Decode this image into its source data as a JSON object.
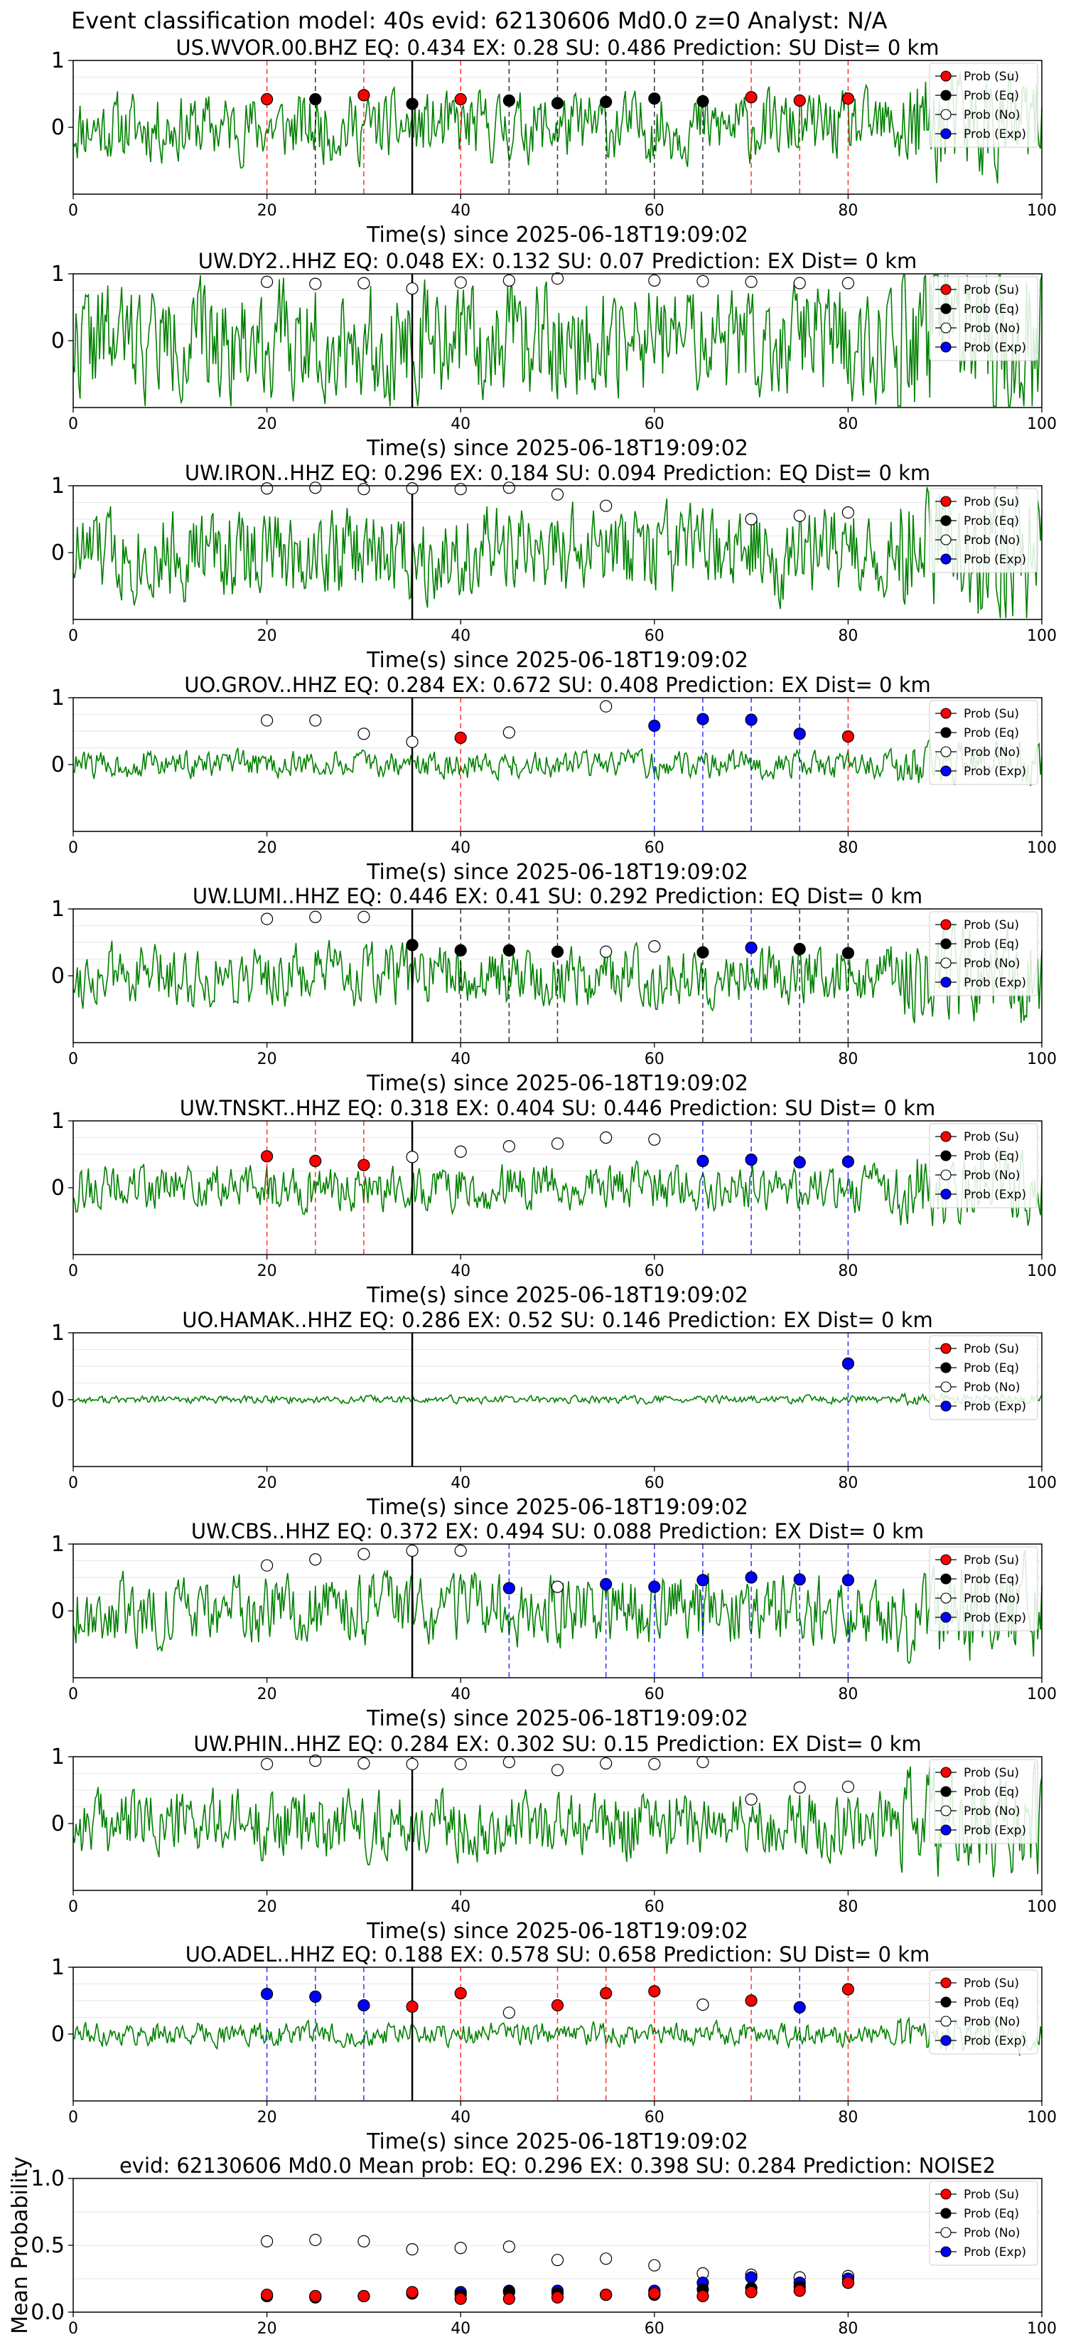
{
  "suptitle": "Event classification model: 40s evid: 62130606 Md0.0 z=0 Analyst: N/A",
  "legend_labels": [
    "Prob (Su)",
    "Prob (Eq)",
    "Prob (No)",
    "Prob (Exp)"
  ],
  "colors": {
    "trace": "#008000",
    "su": "#ff0000",
    "eq": "#000000",
    "no": "#ffffff",
    "exp": "#0000ff",
    "start_line": "#000000"
  },
  "chart_data": [
    {
      "type": "scatter",
      "title": "US.WVOR.00.BHZ   EQ: 0.434   EX: 0.28   SU: 0.486   Prediction: SU    Dist= 0 km",
      "xlabel": "Time(s) since 2025-06-18T19:09:02",
      "xlim": [
        0,
        100
      ],
      "ylim": [
        -1,
        1
      ],
      "xticks": [
        0,
        20,
        40,
        60,
        80,
        100
      ],
      "yticks": [
        1,
        0
      ],
      "start_line": 35,
      "noise_amp": 0.45,
      "seed": 11,
      "points": [
        {
          "x": 20,
          "y": 0.42,
          "cls": "su"
        },
        {
          "x": 25,
          "y": 0.42,
          "cls": "eq"
        },
        {
          "x": 30,
          "y": 0.48,
          "cls": "su"
        },
        {
          "x": 35,
          "y": 0.35,
          "cls": "eq"
        },
        {
          "x": 40,
          "y": 0.42,
          "cls": "su"
        },
        {
          "x": 45,
          "y": 0.4,
          "cls": "eq"
        },
        {
          "x": 50,
          "y": 0.36,
          "cls": "eq"
        },
        {
          "x": 55,
          "y": 0.38,
          "cls": "eq"
        },
        {
          "x": 60,
          "y": 0.43,
          "cls": "eq"
        },
        {
          "x": 65,
          "y": 0.39,
          "cls": "eq"
        },
        {
          "x": 70,
          "y": 0.45,
          "cls": "su"
        },
        {
          "x": 75,
          "y": 0.4,
          "cls": "su"
        },
        {
          "x": 80,
          "y": 0.43,
          "cls": "su"
        }
      ]
    },
    {
      "type": "scatter",
      "title": "UW.DY2..HHZ   EQ: 0.048   EX: 0.132   SU: 0.07   Prediction: EX    Dist= 0 km",
      "xlabel": "Time(s) since 2025-06-18T19:09:02",
      "xlim": [
        0,
        100
      ],
      "ylim": [
        -1,
        1
      ],
      "xticks": [
        0,
        20,
        40,
        60,
        80,
        100
      ],
      "yticks": [
        1,
        0
      ],
      "start_line": 35,
      "noise_amp": 0.75,
      "seed": 22,
      "points": [
        {
          "x": 20,
          "y": 0.88,
          "cls": "no"
        },
        {
          "x": 25,
          "y": 0.85,
          "cls": "no"
        },
        {
          "x": 30,
          "y": 0.86,
          "cls": "no"
        },
        {
          "x": 35,
          "y": 0.78,
          "cls": "no"
        },
        {
          "x": 40,
          "y": 0.87,
          "cls": "no"
        },
        {
          "x": 45,
          "y": 0.9,
          "cls": "no"
        },
        {
          "x": 50,
          "y": 0.93,
          "cls": "no"
        },
        {
          "x": 60,
          "y": 0.9,
          "cls": "no"
        },
        {
          "x": 65,
          "y": 0.89,
          "cls": "no"
        },
        {
          "x": 70,
          "y": 0.88,
          "cls": "no"
        },
        {
          "x": 75,
          "y": 0.86,
          "cls": "no"
        },
        {
          "x": 80,
          "y": 0.86,
          "cls": "no"
        }
      ]
    },
    {
      "type": "scatter",
      "title": "UW.IRON..HHZ   EQ: 0.296   EX: 0.184   SU: 0.094   Prediction: EQ    Dist= 0 km",
      "xlabel": "Time(s) since 2025-06-18T19:09:02",
      "xlim": [
        0,
        100
      ],
      "ylim": [
        -1,
        1
      ],
      "xticks": [
        0,
        20,
        40,
        60,
        80,
        100
      ],
      "yticks": [
        1,
        0
      ],
      "start_line": 35,
      "noise_amp": 0.6,
      "seed": 33,
      "points": [
        {
          "x": 20,
          "y": 0.96,
          "cls": "no"
        },
        {
          "x": 25,
          "y": 0.97,
          "cls": "no"
        },
        {
          "x": 30,
          "y": 0.95,
          "cls": "no"
        },
        {
          "x": 35,
          "y": 0.96,
          "cls": "no"
        },
        {
          "x": 40,
          "y": 0.95,
          "cls": "no"
        },
        {
          "x": 45,
          "y": 0.97,
          "cls": "no"
        },
        {
          "x": 50,
          "y": 0.87,
          "cls": "no"
        },
        {
          "x": 55,
          "y": 0.7,
          "cls": "no"
        },
        {
          "x": 70,
          "y": 0.5,
          "cls": "no"
        },
        {
          "x": 75,
          "y": 0.55,
          "cls": "no"
        },
        {
          "x": 80,
          "y": 0.6,
          "cls": "no"
        }
      ]
    },
    {
      "type": "scatter",
      "title": "UO.GROV..HHZ   EQ: 0.284   EX: 0.672   SU: 0.408   Prediction: EX    Dist= 0 km",
      "xlabel": "Time(s) since 2025-06-18T19:09:02",
      "xlim": [
        0,
        100
      ],
      "ylim": [
        -1,
        1
      ],
      "xticks": [
        0,
        20,
        40,
        60,
        80,
        100
      ],
      "yticks": [
        1,
        0
      ],
      "start_line": 35,
      "noise_amp": 0.18,
      "seed": 44,
      "points": [
        {
          "x": 20,
          "y": 0.66,
          "cls": "no"
        },
        {
          "x": 25,
          "y": 0.66,
          "cls": "no"
        },
        {
          "x": 30,
          "y": 0.46,
          "cls": "no"
        },
        {
          "x": 35,
          "y": 0.34,
          "cls": "no"
        },
        {
          "x": 40,
          "y": 0.4,
          "cls": "su"
        },
        {
          "x": 45,
          "y": 0.48,
          "cls": "no"
        },
        {
          "x": 55,
          "y": 0.87,
          "cls": "no"
        },
        {
          "x": 60,
          "y": 0.58,
          "cls": "exp"
        },
        {
          "x": 65,
          "y": 0.68,
          "cls": "exp"
        },
        {
          "x": 70,
          "y": 0.67,
          "cls": "exp"
        },
        {
          "x": 75,
          "y": 0.46,
          "cls": "exp"
        },
        {
          "x": 80,
          "y": 0.42,
          "cls": "su"
        }
      ]
    },
    {
      "type": "scatter",
      "title": "UW.LUMI..HHZ   EQ: 0.446   EX: 0.41   SU: 0.292   Prediction: EQ    Dist= 0 km",
      "xlabel": "Time(s) since 2025-06-18T19:09:02",
      "xlim": [
        0,
        100
      ],
      "ylim": [
        -1,
        1
      ],
      "xticks": [
        0,
        20,
        40,
        60,
        80,
        100
      ],
      "yticks": [
        1,
        0
      ],
      "start_line": 35,
      "noise_amp": 0.4,
      "seed": 55,
      "points": [
        {
          "x": 20,
          "y": 0.85,
          "cls": "no"
        },
        {
          "x": 25,
          "y": 0.88,
          "cls": "no"
        },
        {
          "x": 30,
          "y": 0.88,
          "cls": "no"
        },
        {
          "x": 35,
          "y": 0.46,
          "cls": "eq"
        },
        {
          "x": 40,
          "y": 0.38,
          "cls": "eq"
        },
        {
          "x": 45,
          "y": 0.38,
          "cls": "eq"
        },
        {
          "x": 50,
          "y": 0.36,
          "cls": "eq"
        },
        {
          "x": 55,
          "y": 0.36,
          "cls": "no"
        },
        {
          "x": 60,
          "y": 0.44,
          "cls": "no"
        },
        {
          "x": 65,
          "y": 0.35,
          "cls": "eq"
        },
        {
          "x": 70,
          "y": 0.42,
          "cls": "exp"
        },
        {
          "x": 75,
          "y": 0.4,
          "cls": "eq"
        },
        {
          "x": 80,
          "y": 0.34,
          "cls": "eq"
        }
      ]
    },
    {
      "type": "scatter",
      "title": "UW.TNSKT..HHZ   EQ: 0.318   EX: 0.404   SU: 0.446   Prediction: SU    Dist= 0 km",
      "xlabel": "Time(s) since 2025-06-18T19:09:02",
      "xlim": [
        0,
        100
      ],
      "ylim": [
        -1,
        1
      ],
      "xticks": [
        0,
        20,
        40,
        60,
        80,
        100
      ],
      "yticks": [
        1,
        0
      ],
      "start_line": 35,
      "noise_amp": 0.3,
      "seed": 66,
      "points": [
        {
          "x": 20,
          "y": 0.47,
          "cls": "su"
        },
        {
          "x": 25,
          "y": 0.4,
          "cls": "su"
        },
        {
          "x": 30,
          "y": 0.34,
          "cls": "su"
        },
        {
          "x": 35,
          "y": 0.46,
          "cls": "no"
        },
        {
          "x": 40,
          "y": 0.54,
          "cls": "no"
        },
        {
          "x": 45,
          "y": 0.62,
          "cls": "no"
        },
        {
          "x": 50,
          "y": 0.66,
          "cls": "no"
        },
        {
          "x": 55,
          "y": 0.75,
          "cls": "no"
        },
        {
          "x": 60,
          "y": 0.72,
          "cls": "no"
        },
        {
          "x": 65,
          "y": 0.4,
          "cls": "exp"
        },
        {
          "x": 70,
          "y": 0.42,
          "cls": "exp"
        },
        {
          "x": 75,
          "y": 0.38,
          "cls": "exp"
        },
        {
          "x": 80,
          "y": 0.39,
          "cls": "exp"
        }
      ]
    },
    {
      "type": "scatter",
      "title": "UO.HAMAK..HHZ   EQ: 0.286   EX: 0.52   SU: 0.146   Prediction: EX    Dist= 0 km",
      "xlabel": "Time(s) since 2025-06-18T19:09:02",
      "xlim": [
        0,
        100
      ],
      "ylim": [
        -1,
        1
      ],
      "xticks": [
        0,
        20,
        40,
        60,
        80,
        100
      ],
      "yticks": [
        1,
        0
      ],
      "start_line": 35,
      "noise_amp": 0.05,
      "seed": 77,
      "points": [
        {
          "x": 80,
          "y": 0.54,
          "cls": "exp"
        }
      ]
    },
    {
      "type": "scatter",
      "title": "UW.CBS..HHZ   EQ: 0.372   EX: 0.494   SU: 0.088   Prediction: EX    Dist= 0 km",
      "xlabel": "Time(s) since 2025-06-18T19:09:02",
      "xlim": [
        0,
        100
      ],
      "ylim": [
        -1,
        1
      ],
      "xticks": [
        0,
        20,
        40,
        60,
        80,
        100
      ],
      "yticks": [
        1,
        0
      ],
      "start_line": 35,
      "noise_amp": 0.45,
      "seed": 88,
      "points": [
        {
          "x": 20,
          "y": 0.68,
          "cls": "no"
        },
        {
          "x": 25,
          "y": 0.77,
          "cls": "no"
        },
        {
          "x": 30,
          "y": 0.85,
          "cls": "no"
        },
        {
          "x": 35,
          "y": 0.9,
          "cls": "no"
        },
        {
          "x": 40,
          "y": 0.9,
          "cls": "no"
        },
        {
          "x": 45,
          "y": 0.34,
          "cls": "exp"
        },
        {
          "x": 50,
          "y": 0.36,
          "cls": "no"
        },
        {
          "x": 55,
          "y": 0.4,
          "cls": "exp"
        },
        {
          "x": 60,
          "y": 0.36,
          "cls": "exp"
        },
        {
          "x": 65,
          "y": 0.46,
          "cls": "exp"
        },
        {
          "x": 70,
          "y": 0.5,
          "cls": "exp"
        },
        {
          "x": 75,
          "y": 0.47,
          "cls": "exp"
        },
        {
          "x": 80,
          "y": 0.46,
          "cls": "exp"
        }
      ]
    },
    {
      "type": "scatter",
      "title": "UW.PHIN..HHZ   EQ: 0.284   EX: 0.302   SU: 0.15   Prediction: EX    Dist= 0 km",
      "xlabel": "Time(s) since 2025-06-18T19:09:02",
      "xlim": [
        0,
        100
      ],
      "ylim": [
        -1,
        1
      ],
      "xticks": [
        0,
        20,
        40,
        60,
        80,
        100
      ],
      "yticks": [
        1,
        0
      ],
      "start_line": 35,
      "noise_amp": 0.45,
      "seed": 99,
      "points": [
        {
          "x": 20,
          "y": 0.89,
          "cls": "no"
        },
        {
          "x": 25,
          "y": 0.94,
          "cls": "no"
        },
        {
          "x": 30,
          "y": 0.9,
          "cls": "no"
        },
        {
          "x": 35,
          "y": 0.89,
          "cls": "no"
        },
        {
          "x": 40,
          "y": 0.89,
          "cls": "no"
        },
        {
          "x": 45,
          "y": 0.92,
          "cls": "no"
        },
        {
          "x": 50,
          "y": 0.8,
          "cls": "no"
        },
        {
          "x": 55,
          "y": 0.9,
          "cls": "no"
        },
        {
          "x": 60,
          "y": 0.89,
          "cls": "no"
        },
        {
          "x": 65,
          "y": 0.92,
          "cls": "no"
        },
        {
          "x": 70,
          "y": 0.36,
          "cls": "no"
        },
        {
          "x": 75,
          "y": 0.54,
          "cls": "no"
        },
        {
          "x": 80,
          "y": 0.55,
          "cls": "no"
        }
      ]
    },
    {
      "type": "scatter",
      "title": "UO.ADEL..HHZ   EQ: 0.188   EX: 0.578   SU: 0.658   Prediction: SU    Dist= 0 km",
      "xlabel": "Time(s) since 2025-06-18T19:09:02",
      "xlim": [
        0,
        100
      ],
      "ylim": [
        -1,
        1
      ],
      "xticks": [
        0,
        20,
        40,
        60,
        80,
        100
      ],
      "yticks": [
        1,
        0
      ],
      "start_line": 35,
      "noise_amp": 0.15,
      "seed": 111,
      "points": [
        {
          "x": 20,
          "y": 0.6,
          "cls": "exp"
        },
        {
          "x": 25,
          "y": 0.56,
          "cls": "exp"
        },
        {
          "x": 30,
          "y": 0.43,
          "cls": "exp"
        },
        {
          "x": 35,
          "y": 0.41,
          "cls": "su"
        },
        {
          "x": 40,
          "y": 0.61,
          "cls": "su"
        },
        {
          "x": 45,
          "y": 0.32,
          "cls": "no"
        },
        {
          "x": 50,
          "y": 0.43,
          "cls": "su"
        },
        {
          "x": 55,
          "y": 0.61,
          "cls": "su"
        },
        {
          "x": 60,
          "y": 0.64,
          "cls": "su"
        },
        {
          "x": 65,
          "y": 0.44,
          "cls": "no"
        },
        {
          "x": 70,
          "y": 0.5,
          "cls": "su"
        },
        {
          "x": 75,
          "y": 0.4,
          "cls": "exp"
        },
        {
          "x": 80,
          "y": 0.67,
          "cls": "su"
        }
      ]
    },
    {
      "type": "scatter",
      "title": "evid: 62130606   Md0.0   Mean prob:   EQ: 0.296   EX: 0.398   SU: 0.284   Prediction: NOISE2",
      "ylabel": "Mean Probability",
      "xlim": [
        0,
        100
      ],
      "ylim": [
        0,
        1
      ],
      "xticks": [
        0,
        20,
        40,
        60,
        80,
        100
      ],
      "yticks": [
        1.0,
        0.5,
        0.0
      ],
      "mean_panel": true,
      "series": [
        {
          "name": "Prob (No)",
          "cls": "no",
          "x": [
            20,
            25,
            30,
            35,
            40,
            45,
            50,
            55,
            60,
            65,
            70,
            75,
            80
          ],
          "y": [
            0.53,
            0.54,
            0.53,
            0.47,
            0.48,
            0.49,
            0.39,
            0.4,
            0.35,
            0.29,
            0.28,
            0.26,
            0.27
          ]
        },
        {
          "name": "Prob (Exp)",
          "cls": "exp",
          "x": [
            20,
            25,
            30,
            35,
            40,
            45,
            50,
            55,
            60,
            65,
            70,
            75,
            80
          ],
          "y": [
            0.12,
            0.12,
            0.12,
            0.14,
            0.15,
            0.16,
            0.16,
            0.13,
            0.16,
            0.22,
            0.26,
            0.22,
            0.25
          ]
        },
        {
          "name": "Prob (Eq)",
          "cls": "eq",
          "x": [
            20,
            25,
            30,
            35,
            40,
            45,
            50,
            55,
            60,
            65,
            70,
            75,
            80
          ],
          "y": [
            0.12,
            0.11,
            0.12,
            0.14,
            0.13,
            0.15,
            0.14,
            0.13,
            0.13,
            0.17,
            0.18,
            0.19,
            0.22
          ]
        },
        {
          "name": "Prob (Su)",
          "cls": "su",
          "x": [
            20,
            25,
            30,
            35,
            40,
            45,
            50,
            55,
            60,
            65,
            70,
            75,
            80
          ],
          "y": [
            0.13,
            0.12,
            0.12,
            0.15,
            0.1,
            0.1,
            0.11,
            0.13,
            0.14,
            0.12,
            0.15,
            0.16,
            0.22
          ]
        }
      ]
    }
  ]
}
